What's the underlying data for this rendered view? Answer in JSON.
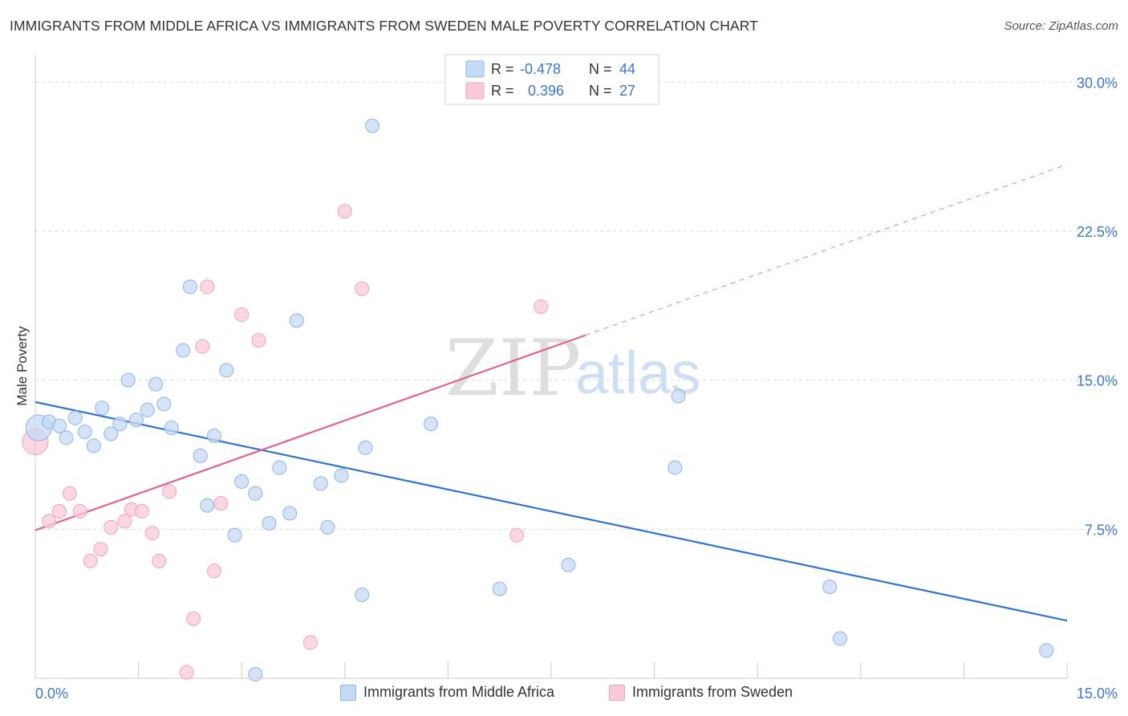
{
  "header": {
    "title": "IMMIGRANTS FROM MIDDLE AFRICA VS IMMIGRANTS FROM SWEDEN MALE POVERTY CORRELATION CHART",
    "source": "Source: ZipAtlas.com"
  },
  "watermark": {
    "zip": "ZIP",
    "atlas": "atlas"
  },
  "stats_box": {
    "rows": [
      {
        "r_label": "R =",
        "r_value": "-0.478",
        "n_label": "N =",
        "n_value": "44",
        "color": "#a9c8f0"
      },
      {
        "r_label": "R =",
        "r_value": "0.396",
        "n_label": "N =",
        "n_value": "27",
        "color": "#f4b6c8"
      }
    ]
  },
  "colors": {
    "blue_fill": "#c5daf5",
    "blue_stroke": "#8fb4e6",
    "blue_line": "#2f74d0",
    "pink_fill": "#f9cad8",
    "pink_stroke": "#eea3bb",
    "pink_line": "#e0648e",
    "axis_text": "#3b78c9",
    "grid": "#d9d9d9"
  },
  "chart_data": {
    "type": "scatter",
    "title": "IMMIGRANTS FROM MIDDLE AFRICA VS IMMIGRANTS FROM SWEDEN MALE POVERTY CORRELATION CHART",
    "xlabel": "",
    "ylabel": "Male Poverty",
    "xlim": [
      0,
      15
    ],
    "ylim": [
      0,
      30.9
    ],
    "x_tick_labels": [
      "0.0%",
      "15.0%"
    ],
    "y_ticks": [
      7.5,
      15.0,
      22.5,
      30.0
    ],
    "y_tick_labels": [
      "7.5%",
      "15.0%",
      "22.5%",
      "30.0%"
    ],
    "grid": "horizontal dashed",
    "legend_position": "bottom",
    "series": [
      {
        "name": "Immigrants from Middle Africa",
        "color": "#8fb4e6",
        "trend": {
          "x": [
            0,
            15
          ],
          "y": [
            13.9,
            2.9
          ],
          "dashed_after": null
        },
        "points": [
          {
            "x": 0.05,
            "y": 12.6,
            "big": true
          },
          {
            "x": 0.2,
            "y": 12.9
          },
          {
            "x": 0.35,
            "y": 12.7
          },
          {
            "x": 0.45,
            "y": 12.1
          },
          {
            "x": 0.58,
            "y": 13.1
          },
          {
            "x": 0.72,
            "y": 12.4
          },
          {
            "x": 0.85,
            "y": 11.7
          },
          {
            "x": 0.97,
            "y": 13.6
          },
          {
            "x": 1.1,
            "y": 12.3
          },
          {
            "x": 1.23,
            "y": 12.8
          },
          {
            "x": 1.35,
            "y": 15.0
          },
          {
            "x": 1.47,
            "y": 13.0
          },
          {
            "x": 1.63,
            "y": 13.5
          },
          {
            "x": 1.75,
            "y": 14.8
          },
          {
            "x": 1.87,
            "y": 13.8
          },
          {
            "x": 1.98,
            "y": 12.6
          },
          {
            "x": 2.15,
            "y": 16.5
          },
          {
            "x": 2.25,
            "y": 19.7
          },
          {
            "x": 2.4,
            "y": 11.2
          },
          {
            "x": 2.5,
            "y": 8.7
          },
          {
            "x": 2.6,
            "y": 12.2
          },
          {
            "x": 2.78,
            "y": 15.5
          },
          {
            "x": 2.9,
            "y": 7.2
          },
          {
            "x": 3.0,
            "y": 9.9
          },
          {
            "x": 3.2,
            "y": 9.3
          },
          {
            "x": 3.4,
            "y": 7.8
          },
          {
            "x": 3.55,
            "y": 10.6
          },
          {
            "x": 3.7,
            "y": 8.3
          },
          {
            "x": 3.8,
            "y": 18.0
          },
          {
            "x": 4.15,
            "y": 9.8
          },
          {
            "x": 4.25,
            "y": 7.6
          },
          {
            "x": 4.45,
            "y": 10.2
          },
          {
            "x": 4.75,
            "y": 4.2
          },
          {
            "x": 4.8,
            "y": 11.6
          },
          {
            "x": 4.9,
            "y": 27.8
          },
          {
            "x": 5.75,
            "y": 12.8
          },
          {
            "x": 6.75,
            "y": 4.5
          },
          {
            "x": 7.75,
            "y": 5.7
          },
          {
            "x": 9.3,
            "y": 10.6
          },
          {
            "x": 9.35,
            "y": 14.2
          },
          {
            "x": 11.55,
            "y": 4.6
          },
          {
            "x": 11.7,
            "y": 2.0
          },
          {
            "x": 14.7,
            "y": 1.4
          },
          {
            "x": 3.2,
            "y": 0.2
          }
        ]
      },
      {
        "name": "Immigrants from Sweden",
        "color": "#eea3bb",
        "trend": {
          "x": [
            0,
            15
          ],
          "y": [
            7.45,
            25.85
          ],
          "dashed_after": 8.0
        },
        "points": [
          {
            "x": 0.0,
            "y": 11.9,
            "big": true
          },
          {
            "x": 0.2,
            "y": 7.9
          },
          {
            "x": 0.35,
            "y": 8.4
          },
          {
            "x": 0.5,
            "y": 9.3
          },
          {
            "x": 0.65,
            "y": 8.4
          },
          {
            "x": 0.8,
            "y": 5.9
          },
          {
            "x": 0.95,
            "y": 6.5
          },
          {
            "x": 1.1,
            "y": 7.6
          },
          {
            "x": 1.3,
            "y": 7.9
          },
          {
            "x": 1.4,
            "y": 8.5
          },
          {
            "x": 1.55,
            "y": 8.4
          },
          {
            "x": 1.7,
            "y": 7.3
          },
          {
            "x": 1.8,
            "y": 5.9
          },
          {
            "x": 1.95,
            "y": 9.4
          },
          {
            "x": 2.2,
            "y": 0.3
          },
          {
            "x": 2.3,
            "y": 3.0
          },
          {
            "x": 2.43,
            "y": 16.7
          },
          {
            "x": 2.5,
            "y": 19.7
          },
          {
            "x": 2.6,
            "y": 5.4
          },
          {
            "x": 2.7,
            "y": 8.8
          },
          {
            "x": 3.0,
            "y": 18.3
          },
          {
            "x": 3.25,
            "y": 17.0
          },
          {
            "x": 4.0,
            "y": 1.8
          },
          {
            "x": 4.5,
            "y": 23.5
          },
          {
            "x": 4.75,
            "y": 19.6
          },
          {
            "x": 7.0,
            "y": 7.2
          },
          {
            "x": 7.35,
            "y": 18.7
          }
        ]
      }
    ]
  }
}
